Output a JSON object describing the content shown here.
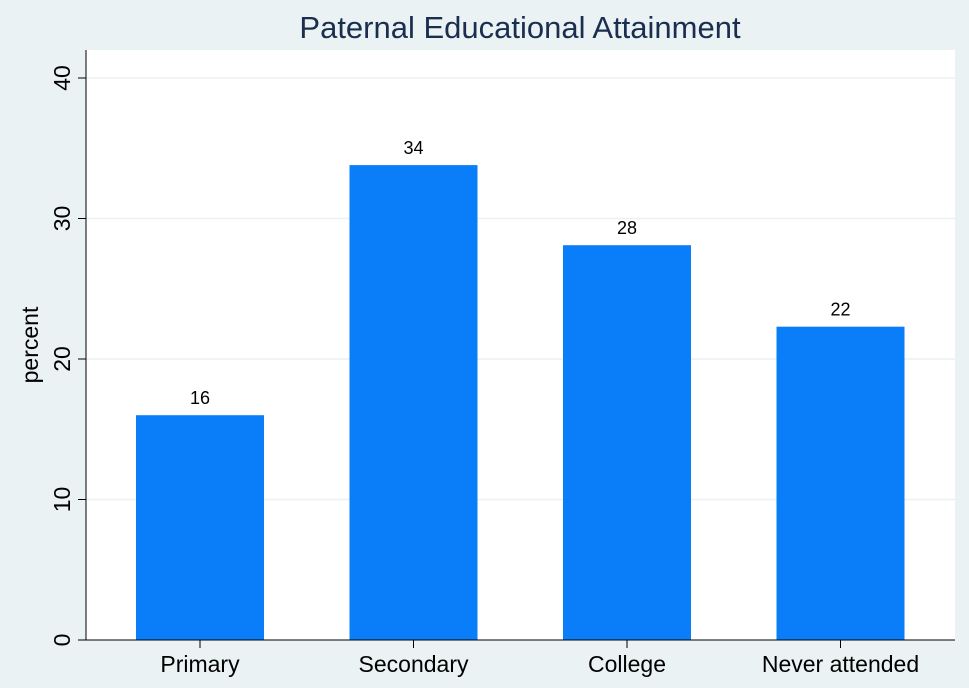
{
  "chart_data": {
    "type": "bar",
    "title": "Paternal Educational Attainment",
    "xlabel": "",
    "ylabel": "percent",
    "categories": [
      "Primary",
      "Secondary",
      "College",
      "Never attended"
    ],
    "values": [
      16,
      33.8,
      28.1,
      22.3
    ],
    "value_labels": [
      "16",
      "34",
      "28",
      "22"
    ],
    "ylim": [
      0,
      42
    ],
    "yticks": [
      0,
      10,
      20,
      30,
      40
    ],
    "grid": true,
    "legend": "none",
    "colors": {
      "bar": "#0a7ef8",
      "plot_background": "#ffffff",
      "outer_background": "#eaf2f3",
      "title": "#1a2e4f"
    }
  }
}
